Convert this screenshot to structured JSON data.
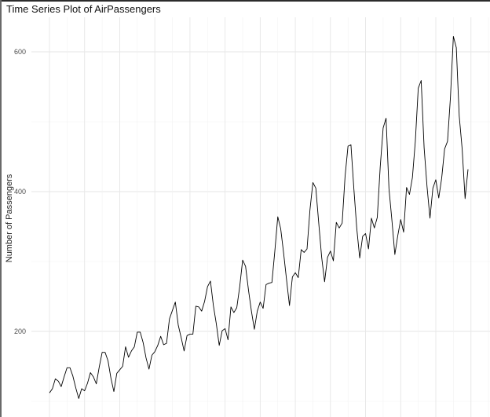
{
  "chart_data": {
    "type": "line",
    "title": "Time Series Plot of AirPassengers",
    "xlabel": "",
    "ylabel": "Number of Passengers",
    "grid": true,
    "yticks": [
      200,
      400,
      600
    ],
    "ylim": [
      90,
      640
    ],
    "x_start": 1949,
    "x_frequency": 12,
    "line_color": "#000000",
    "series": [
      {
        "values": [
          112,
          118,
          132,
          129,
          121,
          135,
          148,
          148,
          136,
          119,
          104,
          118,
          115,
          126,
          141,
          135,
          125,
          149,
          170,
          170,
          158,
          133,
          114,
          140,
          145,
          150,
          178,
          163,
          172,
          178,
          199,
          199,
          184,
          162,
          146,
          166,
          171,
          180,
          193,
          181,
          183,
          218,
          230,
          242,
          209,
          191,
          172,
          194,
          196,
          196,
          236,
          235,
          229,
          243,
          264,
          272,
          237,
          211,
          180,
          201,
          204,
          188,
          235,
          227,
          234,
          264,
          302,
          293,
          259,
          229,
          203,
          229,
          242,
          233,
          267,
          269,
          270,
          315,
          364,
          347,
          312,
          274,
          237,
          278,
          284,
          277,
          317,
          313,
          318,
          374,
          413,
          405,
          355,
          306,
          271,
          306,
          315,
          301,
          356,
          348,
          355,
          422,
          465,
          467,
          404,
          347,
          305,
          336,
          340,
          318,
          362,
          348,
          363,
          435,
          491,
          505,
          404,
          359,
          310,
          337,
          360,
          342,
          406,
          396,
          420,
          472,
          548,
          559,
          463,
          407,
          362,
          405,
          417,
          391,
          419,
          461,
          472,
          535,
          622,
          606,
          508,
          461,
          390,
          432
        ]
      }
    ]
  }
}
